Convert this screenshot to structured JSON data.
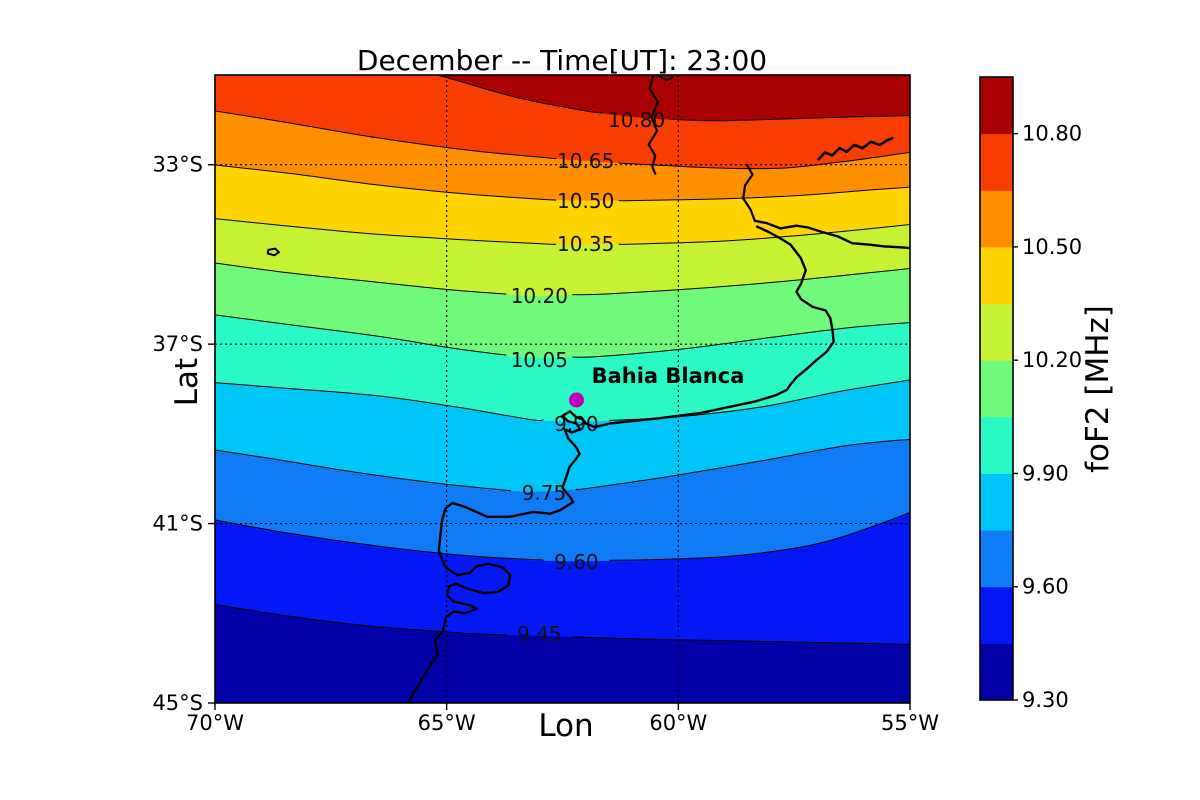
{
  "title": "December -- Time[UT]: 23:00",
  "axes": {
    "xlabel": "Lon",
    "ylabel": "Lat",
    "lon_range": [
      70,
      55
    ],
    "lat_range": [
      31,
      45
    ],
    "x_ticks": [
      {
        "label": "70°W",
        "lon": 70
      },
      {
        "label": "65°W",
        "lon": 65
      },
      {
        "label": "60°W",
        "lon": 60
      },
      {
        "label": "55°W",
        "lon": 55
      }
    ],
    "y_ticks": [
      {
        "label": "33°S",
        "lat": 33
      },
      {
        "label": "37°S",
        "lat": 37
      },
      {
        "label": "41°S",
        "lat": 41
      },
      {
        "label": "45°S",
        "lat": 45
      }
    ],
    "grid_lons": [
      65,
      60
    ],
    "grid_lats": [
      33,
      37,
      41
    ]
  },
  "colorbar": {
    "label": "foF2 [MHz]",
    "value_range": [
      9.3,
      10.95
    ],
    "step": 0.15,
    "ticks": [
      {
        "label": "10.80",
        "value": 10.8
      },
      {
        "label": "10.50",
        "value": 10.5
      },
      {
        "label": "10.20",
        "value": 10.2
      },
      {
        "label": "9.90",
        "value": 9.9
      },
      {
        "label": "9.60",
        "value": 9.6
      },
      {
        "label": "9.30",
        "value": 9.3
      }
    ]
  },
  "station": {
    "name": "Bahia Blanca",
    "lon_w": 62.2,
    "lat_s": 38.24,
    "marker_color": "#bf00bf"
  },
  "chart_data": {
    "type": "contour",
    "quantity": "foF2",
    "units": "MHz",
    "colormap": "jet-discrete-11",
    "band_colors_low_to_high": [
      "#0000a6",
      "#0318f5",
      "#0f7cf5",
      "#00c5f7",
      "#2af8c5",
      "#70f97b",
      "#c7f234",
      "#fed402",
      "#fe8f01",
      "#f73d01",
      "#a90101"
    ],
    "contours": [
      {
        "level": "10.80",
        "value": 10.8,
        "label_pos": [
          60.9,
          32.0
        ],
        "points": [
          [
            70.5,
            29.8
          ],
          [
            67.5,
            30.4
          ],
          [
            65.2,
            31.0
          ],
          [
            63.5,
            31.5
          ],
          [
            62.0,
            31.8
          ],
          [
            60.6,
            31.97
          ],
          [
            59.3,
            32.02
          ],
          [
            58.0,
            31.99
          ],
          [
            56.5,
            31.94
          ],
          [
            54.7,
            31.9
          ]
        ]
      },
      {
        "level": "10.65",
        "value": 10.65,
        "label_pos": [
          62.0,
          32.92
        ],
        "points": [
          [
            70.5,
            31.72
          ],
          [
            68.5,
            32.05
          ],
          [
            66.5,
            32.4
          ],
          [
            64.5,
            32.68
          ],
          [
            62.8,
            32.85
          ],
          [
            61.0,
            32.98
          ],
          [
            59.2,
            33.07
          ],
          [
            57.8,
            33.08
          ],
          [
            56.6,
            32.95
          ],
          [
            55.5,
            32.8
          ],
          [
            54.7,
            32.68
          ]
        ]
      },
      {
        "level": "10.50",
        "value": 10.5,
        "label_pos": [
          62.0,
          33.81
        ],
        "points": [
          [
            70.5,
            32.95
          ],
          [
            68.5,
            33.18
          ],
          [
            66.5,
            33.45
          ],
          [
            64.5,
            33.66
          ],
          [
            62.8,
            33.78
          ],
          [
            61.0,
            33.8
          ],
          [
            59.0,
            33.76
          ],
          [
            57.3,
            33.68
          ],
          [
            55.8,
            33.56
          ],
          [
            54.7,
            33.48
          ]
        ]
      },
      {
        "level": "10.35",
        "value": 10.35,
        "label_pos": [
          62.0,
          34.77
        ],
        "points": [
          [
            70.5,
            34.15
          ],
          [
            68.5,
            34.36
          ],
          [
            66.5,
            34.55
          ],
          [
            64.5,
            34.68
          ],
          [
            62.8,
            34.77
          ],
          [
            61.0,
            34.77
          ],
          [
            59.0,
            34.7
          ],
          [
            57.3,
            34.57
          ],
          [
            55.8,
            34.42
          ],
          [
            54.7,
            34.3
          ]
        ]
      },
      {
        "level": "10.20",
        "value": 10.2,
        "label_pos": [
          63.0,
          35.93
        ],
        "points": [
          [
            70.5,
            35.12
          ],
          [
            68.5,
            35.4
          ],
          [
            66.5,
            35.62
          ],
          [
            64.8,
            35.8
          ],
          [
            63.2,
            35.92
          ],
          [
            61.5,
            35.88
          ],
          [
            59.5,
            35.75
          ],
          [
            57.5,
            35.58
          ],
          [
            55.8,
            35.4
          ],
          [
            54.7,
            35.28
          ]
        ]
      },
      {
        "level": "10.05",
        "value": 10.05,
        "label_pos": [
          63.0,
          37.35
        ],
        "points": [
          [
            70.5,
            36.28
          ],
          [
            68.5,
            36.55
          ],
          [
            66.5,
            36.82
          ],
          [
            64.8,
            37.1
          ],
          [
            63.3,
            37.3
          ],
          [
            61.8,
            37.28
          ],
          [
            60.0,
            37.12
          ],
          [
            58.0,
            36.85
          ],
          [
            56.2,
            36.62
          ],
          [
            54.7,
            36.5
          ]
        ]
      },
      {
        "level": "9.90",
        "value": 9.9,
        "label_pos": [
          62.2,
          38.78
        ],
        "points": [
          [
            70.5,
            37.82
          ],
          [
            68.5,
            37.98
          ],
          [
            66.5,
            38.15
          ],
          [
            64.8,
            38.4
          ],
          [
            63.2,
            38.68
          ],
          [
            61.8,
            38.72
          ],
          [
            60.0,
            38.62
          ],
          [
            58.2,
            38.4
          ],
          [
            56.5,
            38.05
          ],
          [
            54.7,
            37.75
          ]
        ]
      },
      {
        "level": "9.75",
        "value": 9.75,
        "label_pos": [
          62.9,
          40.32
        ],
        "points": [
          [
            70.5,
            39.28
          ],
          [
            68.8,
            39.55
          ],
          [
            67.0,
            39.85
          ],
          [
            65.2,
            40.1
          ],
          [
            63.5,
            40.28
          ],
          [
            62.0,
            40.22
          ],
          [
            60.2,
            39.95
          ],
          [
            58.2,
            39.6
          ],
          [
            56.3,
            39.25
          ],
          [
            54.7,
            39.1
          ]
        ]
      },
      {
        "level": "9.60",
        "value": 9.6,
        "label_pos": [
          62.2,
          41.86
        ],
        "points": [
          [
            70.5,
            40.82
          ],
          [
            68.5,
            41.2
          ],
          [
            66.5,
            41.5
          ],
          [
            64.5,
            41.72
          ],
          [
            62.5,
            41.84
          ],
          [
            60.5,
            41.8
          ],
          [
            58.8,
            41.72
          ],
          [
            57.0,
            41.45
          ],
          [
            55.5,
            40.95
          ],
          [
            54.7,
            40.62
          ]
        ]
      },
      {
        "level": "9.45",
        "value": 9.45,
        "label_pos": [
          63.0,
          43.46
        ],
        "points": [
          [
            70.5,
            42.72
          ],
          [
            68.5,
            43.05
          ],
          [
            66.5,
            43.3
          ],
          [
            64.5,
            43.45
          ],
          [
            62.5,
            43.52
          ],
          [
            60.5,
            43.58
          ],
          [
            58.5,
            43.62
          ],
          [
            56.5,
            43.66
          ],
          [
            54.7,
            43.7
          ]
        ]
      }
    ],
    "coastline": {
      "paths": [
        {
          "name": "parana-river",
          "width": 2.2,
          "points": [
            [
              60.5,
              30.85
            ],
            [
              60.62,
              31.3
            ],
            [
              60.44,
              31.6
            ],
            [
              60.58,
              31.95
            ],
            [
              60.46,
              32.25
            ],
            [
              60.64,
              32.55
            ],
            [
              60.5,
              32.8
            ],
            [
              60.56,
              33.05
            ],
            [
              60.5,
              33.2
            ]
          ]
        },
        {
          "name": "parana-fork",
          "width": 2.0,
          "points": [
            [
              60.45,
              31.0
            ],
            [
              60.25,
              31.12
            ],
            [
              60.12,
              31.05
            ]
          ]
        },
        {
          "name": "uruguay-river",
          "width": 2.2,
          "points": [
            [
              58.52,
              33.0
            ],
            [
              58.4,
              33.22
            ],
            [
              58.56,
              33.46
            ],
            [
              58.6,
              33.75
            ],
            [
              58.44,
              34.0
            ],
            [
              58.35,
              34.25
            ]
          ]
        },
        {
          "name": "rio-negro-river",
          "width": 2.6,
          "points": [
            [
              56.97,
              32.88
            ],
            [
              56.84,
              32.73
            ],
            [
              56.68,
              32.79
            ],
            [
              56.52,
              32.63
            ],
            [
              56.37,
              32.71
            ],
            [
              56.2,
              32.56
            ],
            [
              56.02,
              32.63
            ],
            [
              55.84,
              32.49
            ],
            [
              55.65,
              32.56
            ],
            [
              55.5,
              32.46
            ],
            [
              55.38,
              32.41
            ]
          ]
        },
        {
          "name": "plata-north-shore",
          "width": 2.4,
          "points": [
            [
              58.35,
              34.25
            ],
            [
              58.1,
              34.3
            ],
            [
              57.8,
              34.42
            ],
            [
              57.45,
              34.36
            ],
            [
              57.2,
              34.4
            ],
            [
              56.9,
              34.5
            ],
            [
              56.55,
              34.6
            ],
            [
              56.25,
              34.75
            ],
            [
              55.9,
              34.78
            ],
            [
              55.55,
              34.82
            ],
            [
              55.2,
              34.84
            ],
            [
              54.75,
              34.88
            ]
          ]
        },
        {
          "name": "atlantic-coast",
          "width": 2.4,
          "points": [
            [
              58.3,
              34.38
            ],
            [
              58.05,
              34.5
            ],
            [
              57.82,
              34.63
            ],
            [
              57.58,
              34.78
            ],
            [
              57.36,
              35.08
            ],
            [
              57.25,
              35.35
            ],
            [
              57.35,
              35.65
            ],
            [
              57.45,
              35.83
            ],
            [
              57.35,
              36.0
            ],
            [
              57.1,
              36.17
            ],
            [
              56.82,
              36.25
            ],
            [
              56.72,
              36.42
            ],
            [
              56.67,
              36.7
            ],
            [
              56.65,
              36.95
            ],
            [
              56.8,
              37.17
            ],
            [
              57.0,
              37.34
            ],
            [
              57.25,
              37.57
            ],
            [
              57.45,
              37.74
            ],
            [
              57.58,
              37.9
            ],
            [
              57.66,
              38.02
            ],
            [
              57.9,
              38.14
            ],
            [
              58.35,
              38.28
            ],
            [
              58.9,
              38.4
            ],
            [
              59.5,
              38.53
            ],
            [
              60.4,
              38.65
            ],
            [
              61.05,
              38.72
            ],
            [
              61.47,
              38.77
            ],
            [
              61.8,
              38.85
            ],
            [
              62.0,
              38.77
            ],
            [
              62.06,
              38.68
            ],
            [
              62.2,
              38.63
            ],
            [
              62.34,
              38.5
            ],
            [
              62.5,
              38.6
            ],
            [
              62.38,
              38.72
            ],
            [
              62.2,
              38.77
            ],
            [
              62.12,
              38.9
            ],
            [
              62.3,
              38.97
            ],
            [
              62.45,
              38.9
            ],
            [
              62.38,
              39.1
            ],
            [
              62.2,
              39.3
            ],
            [
              62.13,
              39.45
            ],
            [
              62.24,
              39.6
            ],
            [
              62.35,
              39.74
            ],
            [
              62.42,
              39.97
            ],
            [
              62.5,
              40.2
            ],
            [
              62.34,
              40.4
            ],
            [
              62.27,
              40.52
            ],
            [
              62.55,
              40.7
            ],
            [
              62.77,
              40.78
            ],
            [
              63.13,
              40.74
            ],
            [
              63.63,
              40.85
            ],
            [
              64.12,
              40.85
            ],
            [
              64.6,
              40.63
            ],
            [
              64.88,
              40.54
            ],
            [
              65.03,
              40.67
            ],
            [
              65.1,
              40.94
            ],
            [
              65.17,
              41.6
            ],
            [
              65.03,
              41.97
            ],
            [
              64.77,
              42.15
            ],
            [
              64.5,
              42.1
            ],
            [
              64.35,
              41.95
            ],
            [
              64.1,
              41.9
            ],
            [
              63.78,
              41.98
            ],
            [
              63.63,
              42.15
            ],
            [
              63.67,
              42.38
            ],
            [
              63.9,
              42.53
            ],
            [
              64.2,
              42.55
            ],
            [
              64.56,
              42.45
            ],
            [
              64.8,
              42.34
            ],
            [
              64.95,
              42.4
            ],
            [
              64.99,
              42.6
            ],
            [
              64.85,
              42.74
            ],
            [
              64.5,
              42.82
            ],
            [
              64.35,
              42.9
            ],
            [
              64.6,
              43.0
            ],
            [
              64.85,
              42.96
            ],
            [
              65.02,
              43.1
            ],
            [
              65.08,
              43.4
            ],
            [
              65.25,
              43.6
            ],
            [
              65.2,
              43.93
            ],
            [
              65.34,
              44.15
            ],
            [
              65.5,
              44.4
            ],
            [
              65.6,
              44.6
            ],
            [
              65.72,
              44.78
            ],
            [
              65.87,
              45.1
            ]
          ]
        },
        {
          "name": "small-island",
          "width": 2.0,
          "points": [
            [
              68.85,
              34.9
            ],
            [
              68.7,
              34.87
            ],
            [
              68.62,
              34.95
            ],
            [
              68.72,
              35.02
            ],
            [
              68.86,
              34.98
            ],
            [
              68.85,
              34.9
            ]
          ]
        }
      ]
    }
  }
}
